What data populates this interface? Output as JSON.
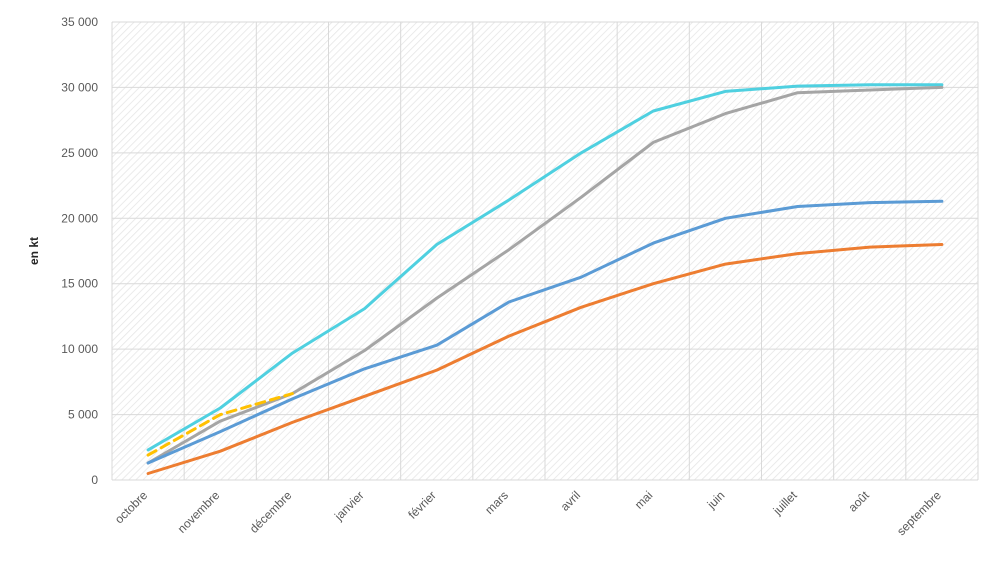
{
  "chart_data": {
    "type": "line",
    "title": "",
    "ylabel": "en kt",
    "xlabel": "",
    "ylim": [
      0,
      35000
    ],
    "ytick_values": [
      0,
      5000,
      10000,
      15000,
      20000,
      25000,
      30000,
      35000
    ],
    "ytick_labels": [
      "0",
      "5 000",
      "10 000",
      "15 000",
      "20 000",
      "25 000",
      "30 000",
      "35 000"
    ],
    "categories": [
      "octobre",
      "novembre",
      "décembre",
      "janvier",
      "février",
      "mars",
      "avril",
      "mai",
      "juin",
      "juillet",
      "août",
      "septembre"
    ],
    "grid": true,
    "legend": "none",
    "series": [
      {
        "color": "#4fd0e0",
        "dashed": false,
        "values": [
          2300,
          5500,
          9700,
          13100,
          18000,
          21400,
          25000,
          28200,
          29700,
          30100,
          30200,
          30200
        ]
      },
      {
        "color": "#a5a5a5",
        "dashed": false,
        "values": [
          1300,
          4500,
          6600,
          9900,
          13900,
          17600,
          21600,
          25800,
          28000,
          29600,
          29800,
          30000
        ]
      },
      {
        "color": "#5b9bd5",
        "dashed": false,
        "values": [
          1300,
          3700,
          6200,
          8500,
          10300,
          13600,
          15500,
          18100,
          20000,
          20900,
          21200,
          21300
        ]
      },
      {
        "color": "#ed7d31",
        "dashed": false,
        "values": [
          500,
          2200,
          4400,
          6400,
          8400,
          11000,
          13200,
          15000,
          16500,
          17300,
          17800,
          18000
        ]
      },
      {
        "color": "#ffc000",
        "dashed": true,
        "values": [
          1900,
          5000,
          6600,
          null,
          null,
          null,
          null,
          null,
          null,
          null,
          null,
          null
        ]
      }
    ]
  }
}
